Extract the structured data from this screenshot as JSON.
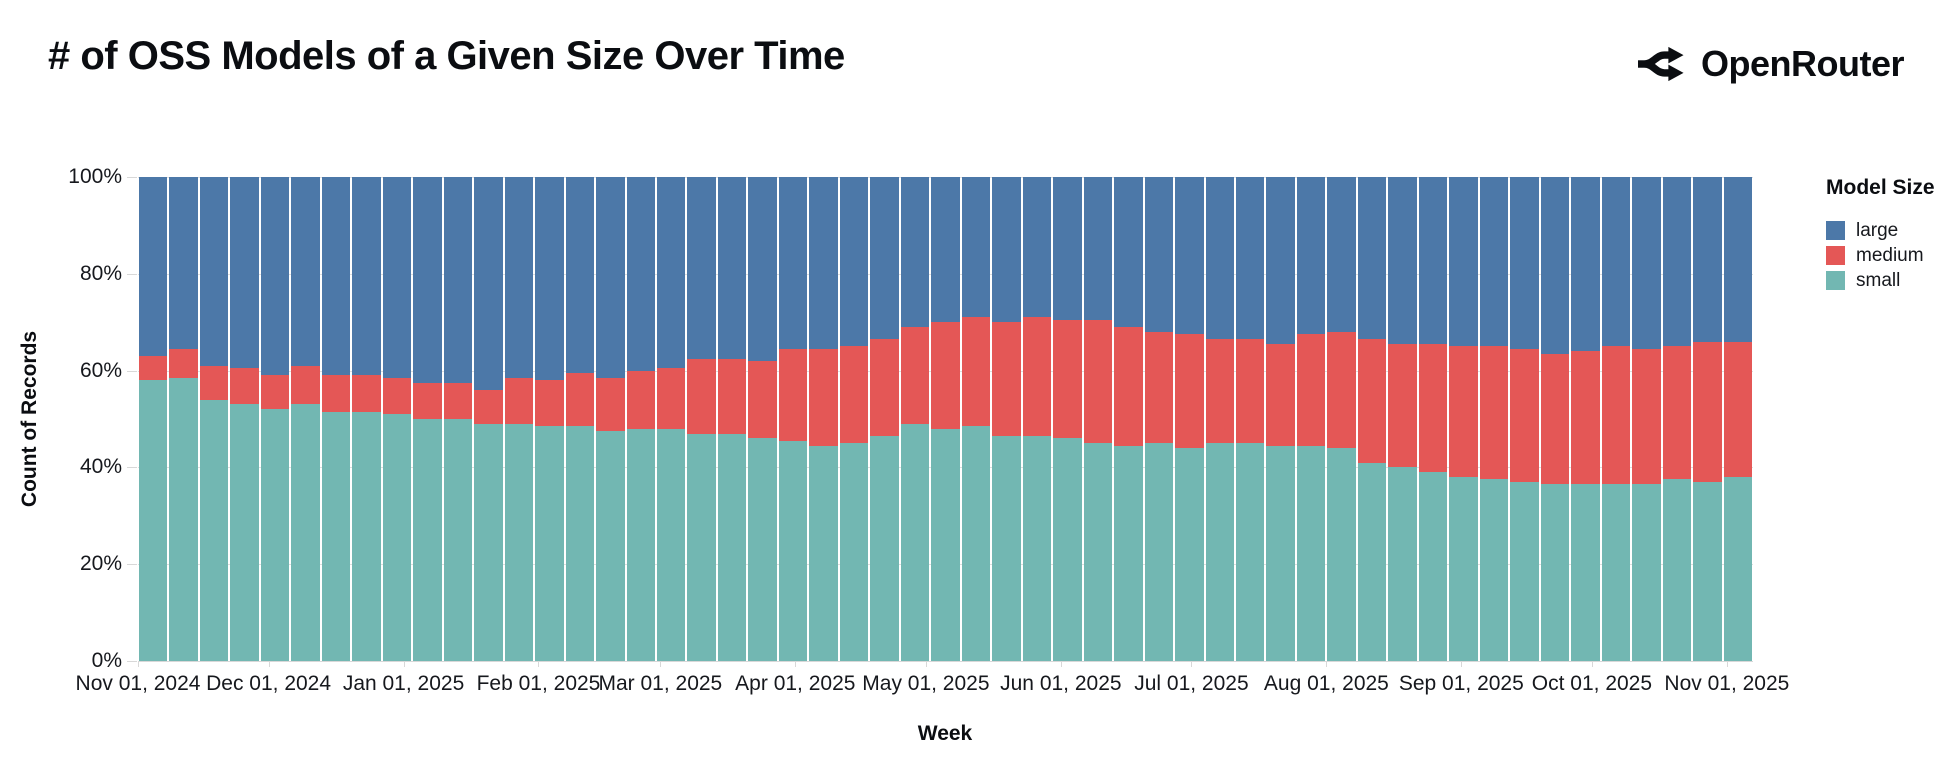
{
  "header": {
    "title": "# of OSS Models of a Given Size Over Time",
    "brand": "OpenRouter"
  },
  "chart_data": {
    "type": "bar",
    "stacked": true,
    "normalized_percent": true,
    "title": "# of OSS Models of a Given Size Over Time",
    "xlabel": "Week",
    "ylabel": "Count of Records",
    "ylim": [
      0,
      100
    ],
    "y_ticks": [
      "0%",
      "20%",
      "40%",
      "60%",
      "80%",
      "100%"
    ],
    "grid": true,
    "legend": {
      "title": "Model Size",
      "position": "right",
      "entries": [
        {
          "label": "large",
          "color": "#4c78a8"
        },
        {
          "label": "medium",
          "color": "#e45756"
        },
        {
          "label": "small",
          "color": "#72b7b2"
        }
      ]
    },
    "colors": {
      "large": "#4c78a8",
      "medium": "#e45756",
      "small": "#72b7b2"
    },
    "x_domain_days": 371,
    "x_ticks": [
      {
        "label": "Nov 01, 2024",
        "day": 0
      },
      {
        "label": "Dec 01, 2024",
        "day": 30
      },
      {
        "label": "Jan 01, 2025",
        "day": 61
      },
      {
        "label": "Feb 01, 2025",
        "day": 92
      },
      {
        "label": "Mar 01, 2025",
        "day": 120
      },
      {
        "label": "Apr 01, 2025",
        "day": 151
      },
      {
        "label": "May 01, 2025",
        "day": 181
      },
      {
        "label": "Jun 01, 2025",
        "day": 212
      },
      {
        "label": "Jul 01, 2025",
        "day": 242
      },
      {
        "label": "Aug 01, 2025",
        "day": 273
      },
      {
        "label": "Sep 01, 2025",
        "day": 304
      },
      {
        "label": "Oct 01, 2025",
        "day": 334
      },
      {
        "label": "Nov 01, 2025",
        "day": 365
      }
    ],
    "weeks": [
      {
        "date": "2024-11-01",
        "small": 58.0,
        "medium": 5.0,
        "large": 37.0
      },
      {
        "date": "2024-11-08",
        "small": 58.5,
        "medium": 6.0,
        "large": 35.5
      },
      {
        "date": "2024-11-15",
        "small": 54.0,
        "medium": 7.0,
        "large": 39.0
      },
      {
        "date": "2024-11-22",
        "small": 53.0,
        "medium": 7.5,
        "large": 39.5
      },
      {
        "date": "2024-11-29",
        "small": 52.0,
        "medium": 7.0,
        "large": 41.0
      },
      {
        "date": "2024-12-06",
        "small": 53.0,
        "medium": 8.0,
        "large": 39.0
      },
      {
        "date": "2024-12-13",
        "small": 51.5,
        "medium": 7.5,
        "large": 41.0
      },
      {
        "date": "2024-12-20",
        "small": 51.5,
        "medium": 7.5,
        "large": 41.0
      },
      {
        "date": "2024-12-27",
        "small": 51.0,
        "medium": 7.5,
        "large": 41.5
      },
      {
        "date": "2025-01-03",
        "small": 50.0,
        "medium": 7.5,
        "large": 42.5
      },
      {
        "date": "2025-01-10",
        "small": 50.0,
        "medium": 7.5,
        "large": 42.5
      },
      {
        "date": "2025-01-17",
        "small": 49.0,
        "medium": 7.0,
        "large": 44.0
      },
      {
        "date": "2025-01-24",
        "small": 49.0,
        "medium": 9.5,
        "large": 41.5
      },
      {
        "date": "2025-01-31",
        "small": 48.5,
        "medium": 9.5,
        "large": 42.0
      },
      {
        "date": "2025-02-07",
        "small": 48.5,
        "medium": 11.0,
        "large": 40.5
      },
      {
        "date": "2025-02-14",
        "small": 47.5,
        "medium": 11.0,
        "large": 41.5
      },
      {
        "date": "2025-02-21",
        "small": 48.0,
        "medium": 12.0,
        "large": 40.0
      },
      {
        "date": "2025-02-28",
        "small": 48.0,
        "medium": 12.5,
        "large": 39.5
      },
      {
        "date": "2025-03-07",
        "small": 47.0,
        "medium": 15.5,
        "large": 37.5
      },
      {
        "date": "2025-03-14",
        "small": 47.0,
        "medium": 15.5,
        "large": 37.5
      },
      {
        "date": "2025-03-21",
        "small": 46.0,
        "medium": 16.0,
        "large": 38.0
      },
      {
        "date": "2025-03-28",
        "small": 45.5,
        "medium": 19.0,
        "large": 35.5
      },
      {
        "date": "2025-04-04",
        "small": 44.5,
        "medium": 20.0,
        "large": 35.5
      },
      {
        "date": "2025-04-11",
        "small": 45.0,
        "medium": 20.0,
        "large": 35.0
      },
      {
        "date": "2025-04-18",
        "small": 46.5,
        "medium": 20.0,
        "large": 33.5
      },
      {
        "date": "2025-04-25",
        "small": 49.0,
        "medium": 20.0,
        "large": 31.0
      },
      {
        "date": "2025-05-02",
        "small": 48.0,
        "medium": 22.0,
        "large": 30.0
      },
      {
        "date": "2025-05-09",
        "small": 48.5,
        "medium": 22.5,
        "large": 29.0
      },
      {
        "date": "2025-05-16",
        "small": 46.5,
        "medium": 23.5,
        "large": 30.0
      },
      {
        "date": "2025-05-23",
        "small": 46.5,
        "medium": 24.5,
        "large": 29.0
      },
      {
        "date": "2025-05-30",
        "small": 46.0,
        "medium": 24.5,
        "large": 29.5
      },
      {
        "date": "2025-06-06",
        "small": 45.0,
        "medium": 25.5,
        "large": 29.5
      },
      {
        "date": "2025-06-13",
        "small": 44.5,
        "medium": 24.5,
        "large": 31.0
      },
      {
        "date": "2025-06-20",
        "small": 45.0,
        "medium": 23.0,
        "large": 32.0
      },
      {
        "date": "2025-06-27",
        "small": 44.0,
        "medium": 23.5,
        "large": 32.5
      },
      {
        "date": "2025-07-04",
        "small": 45.0,
        "medium": 21.5,
        "large": 33.5
      },
      {
        "date": "2025-07-11",
        "small": 45.0,
        "medium": 21.5,
        "large": 33.5
      },
      {
        "date": "2025-07-18",
        "small": 44.5,
        "medium": 21.0,
        "large": 34.5
      },
      {
        "date": "2025-07-25",
        "small": 44.5,
        "medium": 23.0,
        "large": 32.5
      },
      {
        "date": "2025-08-01",
        "small": 44.0,
        "medium": 24.0,
        "large": 32.0
      },
      {
        "date": "2025-08-08",
        "small": 41.0,
        "medium": 25.5,
        "large": 33.5
      },
      {
        "date": "2025-08-15",
        "small": 40.0,
        "medium": 25.5,
        "large": 34.5
      },
      {
        "date": "2025-08-22",
        "small": 39.0,
        "medium": 26.5,
        "large": 34.5
      },
      {
        "date": "2025-08-29",
        "small": 38.0,
        "medium": 27.0,
        "large": 35.0
      },
      {
        "date": "2025-09-05",
        "small": 37.5,
        "medium": 27.5,
        "large": 35.0
      },
      {
        "date": "2025-09-12",
        "small": 37.0,
        "medium": 27.5,
        "large": 35.5
      },
      {
        "date": "2025-09-19",
        "small": 36.5,
        "medium": 27.0,
        "large": 36.5
      },
      {
        "date": "2025-09-26",
        "small": 36.5,
        "medium": 27.5,
        "large": 36.0
      },
      {
        "date": "2025-10-03",
        "small": 36.5,
        "medium": 28.5,
        "large": 35.0
      },
      {
        "date": "2025-10-10",
        "small": 36.5,
        "medium": 28.0,
        "large": 35.5
      },
      {
        "date": "2025-10-17",
        "small": 37.5,
        "medium": 27.5,
        "large": 35.0
      },
      {
        "date": "2025-10-24",
        "small": 37.0,
        "medium": 29.0,
        "large": 34.0
      },
      {
        "date": "2025-10-31",
        "small": 38.0,
        "medium": 28.0,
        "large": 34.0
      }
    ]
  }
}
